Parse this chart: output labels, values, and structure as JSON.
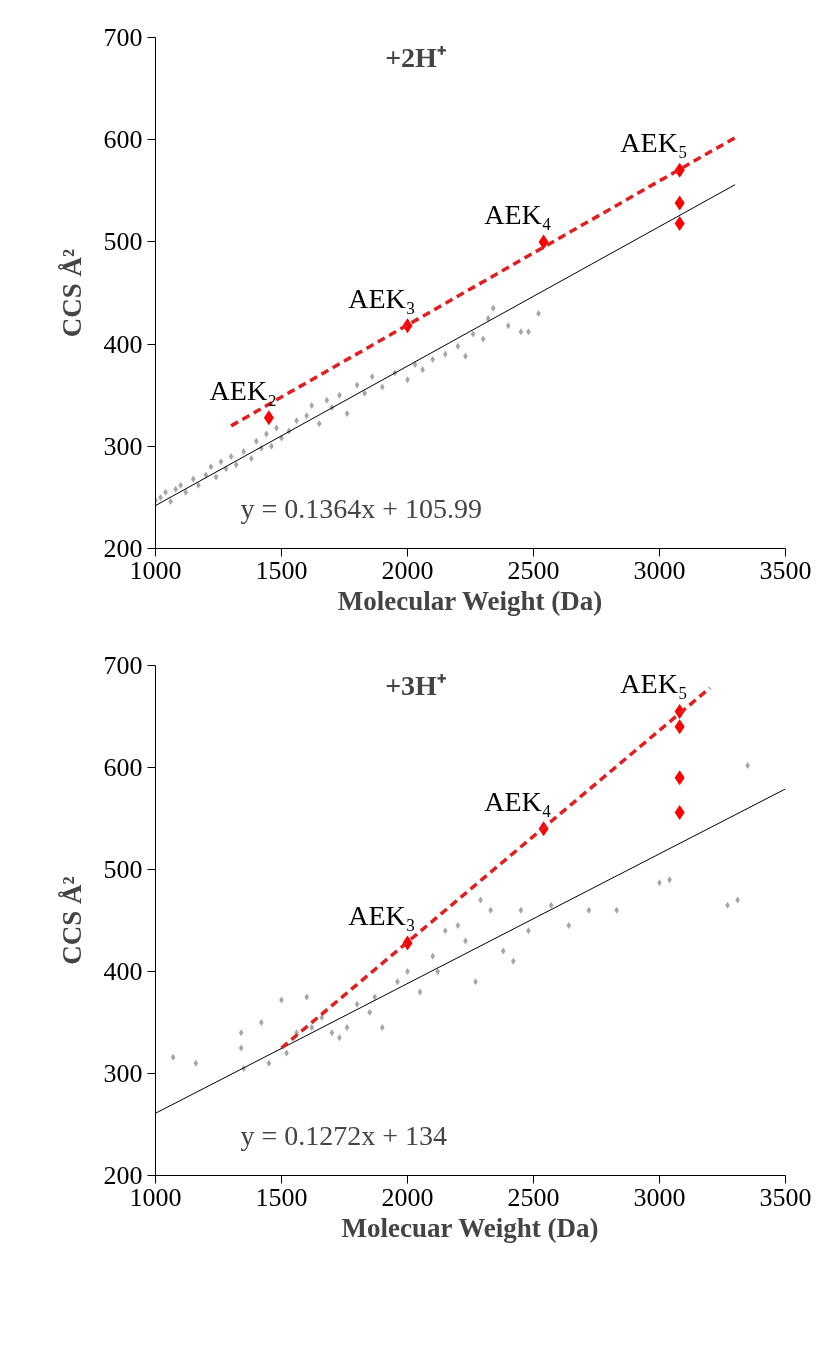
{
  "chart_data": [
    {
      "type": "scatter",
      "title": "+2H⁺",
      "xlabel": "Molecular Weight (Da)",
      "ylabel": "CCS Å²",
      "xlim": [
        1000,
        3500
      ],
      "ylim": [
        200,
        700
      ],
      "xticks": [
        1000,
        1500,
        2000,
        2500,
        3000,
        3500
      ],
      "yticks": [
        200,
        300,
        400,
        500,
        600,
        700
      ],
      "grid": false,
      "marker": "diamond",
      "series": [
        {
          "color": "#a6a6a6",
          "x": [
            1000,
            1020,
            1040,
            1060,
            1080,
            1100,
            1120,
            1150,
            1170,
            1200,
            1220,
            1240,
            1260,
            1280,
            1300,
            1320,
            1350,
            1380,
            1400,
            1420,
            1440,
            1460,
            1480,
            1500,
            1530,
            1560,
            1600,
            1620,
            1650,
            1680,
            1700,
            1730,
            1760,
            1800,
            1830,
            1860,
            1900,
            1950,
            2000,
            2030,
            2060,
            2100,
            2150,
            2200,
            2230,
            2260,
            2300,
            2320,
            2340,
            2400,
            2450,
            2480,
            2520
          ],
          "values": [
            247,
            250,
            255,
            246,
            258,
            262,
            255,
            268,
            262,
            272,
            280,
            270,
            285,
            278,
            290,
            282,
            295,
            288,
            305,
            298,
            312,
            300,
            318,
            308,
            315,
            325,
            330,
            340,
            322,
            345,
            338,
            350,
            332,
            360,
            352,
            368,
            358,
            372,
            365,
            380,
            375,
            385,
            390,
            398,
            388,
            410,
            405,
            425,
            435,
            418,
            412,
            412,
            430
          ]
        },
        {
          "color": "#ff0000",
          "x": [
            1450,
            2000,
            2540,
            3080,
            3080,
            3080
          ],
          "values": [
            328,
            418,
            500,
            570,
            538,
            518
          ]
        },
        {
          "type": "line",
          "marker": "none",
          "color": "#000000",
          "line_style": "solid",
          "x": [
            1000,
            3300
          ],
          "values": [
            242,
            556
          ]
        },
        {
          "type": "line",
          "marker": "none",
          "color": "#e02020",
          "line_style": "dashed",
          "x": [
            1300,
            3300
          ],
          "values": [
            320,
            602
          ]
        }
      ],
      "annotations": [
        {
          "text": "AEK₂",
          "x": 1450,
          "y": 328
        },
        {
          "text": "AEK₃",
          "x": 2000,
          "y": 418
        },
        {
          "text": "AEK₄",
          "x": 2540,
          "y": 500
        },
        {
          "text": "AEK₅",
          "x": 3080,
          "y": 570
        },
        "y = 0.1364x + 105.99"
      ]
    },
    {
      "type": "scatter",
      "title": "+3H⁺",
      "xlabel": "Molecuar Weight (Da)",
      "ylabel": "CCS Å²",
      "xlim": [
        1000,
        3500
      ],
      "ylim": [
        200,
        700
      ],
      "xticks": [
        1000,
        1500,
        2000,
        2500,
        3000,
        3500
      ],
      "yticks": [
        200,
        300,
        400,
        500,
        600,
        700
      ],
      "grid": false,
      "marker": "diamond",
      "series": [
        {
          "color": "#a6a6a6",
          "x": [
            1070,
            1160,
            1340,
            1340,
            1350,
            1420,
            1450,
            1500,
            1520,
            1560,
            1600,
            1620,
            1660,
            1700,
            1730,
            1760,
            1800,
            1850,
            1870,
            1900,
            1960,
            2000,
            2050,
            2100,
            2120,
            2150,
            2200,
            2230,
            2270,
            2290,
            2330,
            2380,
            2420,
            2450,
            2480,
            2570,
            2640,
            2720,
            2830,
            3000,
            3040,
            3270,
            3310,
            3350
          ],
          "values": [
            316,
            310,
            340,
            325,
            305,
            350,
            310,
            372,
            320,
            340,
            375,
            345,
            355,
            340,
            335,
            345,
            368,
            360,
            375,
            345,
            390,
            400,
            380,
            415,
            400,
            440,
            445,
            430,
            390,
            470,
            460,
            420,
            410,
            460,
            440,
            465,
            445,
            460,
            460,
            487,
            490,
            465,
            470,
            602
          ]
        },
        {
          "color": "#ff0000",
          "x": [
            2000,
            2540,
            3080,
            3080,
            3080,
            3080
          ],
          "values": [
            428,
            540,
            655,
            640,
            590,
            556
          ]
        },
        {
          "type": "line",
          "marker": "none",
          "color": "#000000",
          "line_style": "solid",
          "x": [
            1000,
            3500
          ],
          "values": [
            261,
            579
          ]
        },
        {
          "type": "line",
          "marker": "none",
          "color": "#e02020",
          "line_style": "dashed",
          "x": [
            1500,
            3200
          ],
          "values": [
            325,
            678
          ]
        }
      ],
      "annotations": [
        {
          "text": "AEK₃",
          "x": 2000,
          "y": 428
        },
        {
          "text": "AEK₄",
          "x": 2540,
          "y": 540
        },
        {
          "text": "AEK₅",
          "x": 3080,
          "y": 655
        },
        "y = 0.1272x + 134"
      ]
    }
  ]
}
